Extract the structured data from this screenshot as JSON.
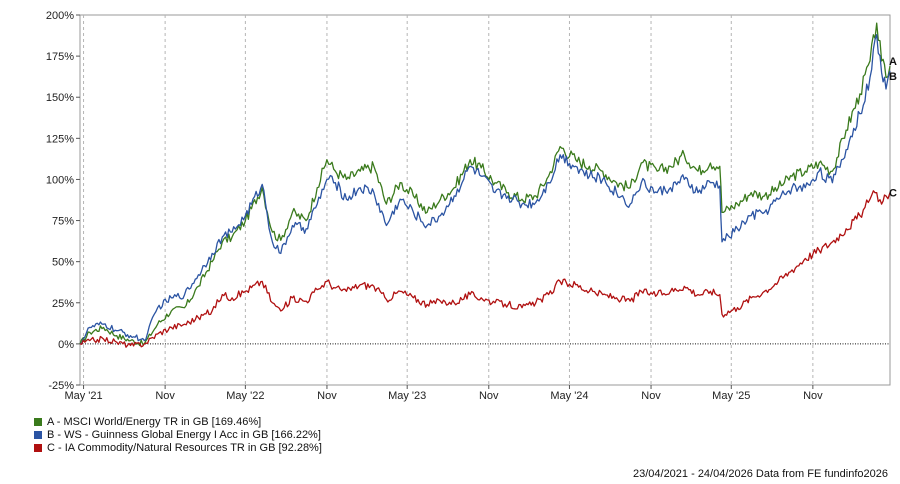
{
  "chart_data": {
    "type": "line",
    "ylim": [
      -0.25,
      2.0
    ],
    "y_ticks": [
      -0.25,
      0,
      0.25,
      0.5,
      0.75,
      1.0,
      1.25,
      1.5,
      1.75,
      2.0
    ],
    "y_tick_labels": [
      "-25%",
      "0%",
      "25%",
      "50%",
      "75%",
      "100%",
      "125%",
      "150%",
      "175%",
      "200%"
    ],
    "x_tick_labels": [
      "May '21",
      "Nov",
      "May '22",
      "Nov",
      "May '23",
      "Nov",
      "May '24",
      "Nov",
      "May '25",
      "Nov"
    ],
    "x_tick_dates": [
      "2021-05-01",
      "2021-11-01",
      "2022-05-01",
      "2022-11-01",
      "2023-05-01",
      "2023-11-01",
      "2024-05-01",
      "2024-11-01",
      "2025-05-01",
      "2025-11-01"
    ],
    "x_range": [
      "2021-04-23",
      "2026-04-24"
    ],
    "grid": "vertical",
    "zero_line": "dotted",
    "legend_position": "bottom-left",
    "series": [
      {
        "name": "A - MSCI World/Energy TR in GB [169.46%]",
        "end_label": "A",
        "color": "#3a7a1c",
        "points": [
          [
            "2021-04-23",
            0.0
          ],
          [
            "2021-05-15",
            0.07
          ],
          [
            "2021-06-15",
            0.1
          ],
          [
            "2021-07-15",
            0.05
          ],
          [
            "2021-08-15",
            0.02
          ],
          [
            "2021-09-15",
            0.0
          ],
          [
            "2021-10-15",
            0.12
          ],
          [
            "2021-11-15",
            0.2
          ],
          [
            "2021-12-15",
            0.22
          ],
          [
            "2022-01-15",
            0.35
          ],
          [
            "2022-02-15",
            0.5
          ],
          [
            "2022-03-10",
            0.62
          ],
          [
            "2022-04-01",
            0.65
          ],
          [
            "2022-05-01",
            0.75
          ],
          [
            "2022-06-08",
            0.95
          ],
          [
            "2022-07-01",
            0.68
          ],
          [
            "2022-07-20",
            0.63
          ],
          [
            "2022-08-15",
            0.8
          ],
          [
            "2022-09-15",
            0.75
          ],
          [
            "2022-10-10",
            0.95
          ],
          [
            "2022-11-01",
            1.12
          ],
          [
            "2022-11-20",
            1.05
          ],
          [
            "2022-12-15",
            1.0
          ],
          [
            "2023-01-15",
            1.05
          ],
          [
            "2023-02-15",
            1.08
          ],
          [
            "2023-03-15",
            0.85
          ],
          [
            "2023-04-15",
            0.98
          ],
          [
            "2023-05-15",
            0.9
          ],
          [
            "2023-06-15",
            0.8
          ],
          [
            "2023-07-15",
            0.88
          ],
          [
            "2023-08-15",
            0.95
          ],
          [
            "2023-09-20",
            1.12
          ],
          [
            "2023-10-15",
            1.07
          ],
          [
            "2023-11-15",
            0.98
          ],
          [
            "2023-12-15",
            0.92
          ],
          [
            "2024-01-15",
            0.88
          ],
          [
            "2024-02-15",
            0.9
          ],
          [
            "2024-03-15",
            1.02
          ],
          [
            "2024-04-10",
            1.2
          ],
          [
            "2024-05-15",
            1.12
          ],
          [
            "2024-06-15",
            1.08
          ],
          [
            "2024-07-15",
            1.05
          ],
          [
            "2024-08-15",
            0.98
          ],
          [
            "2024-09-15",
            0.95
          ],
          [
            "2024-10-10",
            1.1
          ],
          [
            "2024-11-15",
            1.05
          ],
          [
            "2024-12-15",
            1.08
          ],
          [
            "2025-01-15",
            1.15
          ],
          [
            "2025-02-15",
            1.05
          ],
          [
            "2025-03-15",
            1.1
          ],
          [
            "2025-04-05",
            1.08
          ],
          [
            "2025-04-10",
            0.8
          ],
          [
            "2025-05-15",
            0.85
          ],
          [
            "2025-06-15",
            0.92
          ],
          [
            "2025-07-15",
            0.9
          ],
          [
            "2025-08-15",
            0.95
          ],
          [
            "2025-09-15",
            1.02
          ],
          [
            "2025-10-15",
            1.05
          ],
          [
            "2025-11-15",
            1.1
          ],
          [
            "2025-12-15",
            1.05
          ],
          [
            "2026-01-15",
            1.3
          ],
          [
            "2026-02-15",
            1.52
          ],
          [
            "2026-03-10",
            1.72
          ],
          [
            "2026-03-25",
            1.95
          ],
          [
            "2026-04-05",
            1.72
          ],
          [
            "2026-04-15",
            1.62
          ],
          [
            "2026-04-24",
            1.69
          ]
        ]
      },
      {
        "name": "B - WS - Guinness Global Energy I Acc in GB [166.22%]",
        "end_label": "B",
        "color": "#2b54a3",
        "points": [
          [
            "2021-04-23",
            0.0
          ],
          [
            "2021-05-15",
            0.1
          ],
          [
            "2021-06-15",
            0.12
          ],
          [
            "2021-07-15",
            0.08
          ],
          [
            "2021-08-15",
            0.05
          ],
          [
            "2021-09-15",
            0.02
          ],
          [
            "2021-10-15",
            0.22
          ],
          [
            "2021-11-15",
            0.28
          ],
          [
            "2021-12-15",
            0.3
          ],
          [
            "2022-01-15",
            0.42
          ],
          [
            "2022-02-15",
            0.55
          ],
          [
            "2022-03-10",
            0.65
          ],
          [
            "2022-04-01",
            0.68
          ],
          [
            "2022-05-01",
            0.78
          ],
          [
            "2022-06-08",
            0.97
          ],
          [
            "2022-07-01",
            0.62
          ],
          [
            "2022-07-20",
            0.55
          ],
          [
            "2022-08-15",
            0.72
          ],
          [
            "2022-09-15",
            0.7
          ],
          [
            "2022-10-10",
            0.85
          ],
          [
            "2022-11-01",
            1.0
          ],
          [
            "2022-11-20",
            0.98
          ],
          [
            "2022-12-15",
            0.88
          ],
          [
            "2023-01-15",
            0.95
          ],
          [
            "2023-02-15",
            0.92
          ],
          [
            "2023-03-15",
            0.72
          ],
          [
            "2023-04-15",
            0.88
          ],
          [
            "2023-05-15",
            0.8
          ],
          [
            "2023-06-15",
            0.72
          ],
          [
            "2023-07-15",
            0.78
          ],
          [
            "2023-08-15",
            0.9
          ],
          [
            "2023-09-20",
            1.08
          ],
          [
            "2023-10-15",
            1.02
          ],
          [
            "2023-11-15",
            0.92
          ],
          [
            "2023-12-15",
            0.9
          ],
          [
            "2024-01-15",
            0.85
          ],
          [
            "2024-02-15",
            0.86
          ],
          [
            "2024-03-15",
            0.98
          ],
          [
            "2024-04-10",
            1.15
          ],
          [
            "2024-05-15",
            1.08
          ],
          [
            "2024-06-15",
            1.02
          ],
          [
            "2024-07-15",
            1.0
          ],
          [
            "2024-08-15",
            0.92
          ],
          [
            "2024-09-15",
            0.85
          ],
          [
            "2024-10-10",
            0.98
          ],
          [
            "2024-11-15",
            0.92
          ],
          [
            "2024-12-15",
            0.95
          ],
          [
            "2025-01-15",
            1.0
          ],
          [
            "2025-02-15",
            0.92
          ],
          [
            "2025-03-15",
            0.98
          ],
          [
            "2025-04-05",
            0.96
          ],
          [
            "2025-04-10",
            0.62
          ],
          [
            "2025-05-15",
            0.7
          ],
          [
            "2025-06-15",
            0.78
          ],
          [
            "2025-07-15",
            0.8
          ],
          [
            "2025-08-15",
            0.88
          ],
          [
            "2025-09-15",
            0.95
          ],
          [
            "2025-10-15",
            0.95
          ],
          [
            "2025-11-15",
            1.05
          ],
          [
            "2025-12-15",
            0.98
          ],
          [
            "2026-01-15",
            1.18
          ],
          [
            "2026-02-15",
            1.4
          ],
          [
            "2026-03-10",
            1.62
          ],
          [
            "2026-03-25",
            1.88
          ],
          [
            "2026-04-05",
            1.65
          ],
          [
            "2026-04-15",
            1.55
          ],
          [
            "2026-04-24",
            1.66
          ]
        ]
      },
      {
        "name": "C - IA Commodity/Natural Resources TR in GB [92.28%]",
        "end_label": "C",
        "color": "#b01010",
        "points": [
          [
            "2021-04-23",
            0.0
          ],
          [
            "2021-05-15",
            0.02
          ],
          [
            "2021-06-15",
            0.03
          ],
          [
            "2021-07-15",
            0.01
          ],
          [
            "2021-08-15",
            -0.01
          ],
          [
            "2021-09-15",
            0.0
          ],
          [
            "2021-10-15",
            0.06
          ],
          [
            "2021-11-15",
            0.1
          ],
          [
            "2021-12-15",
            0.12
          ],
          [
            "2022-01-15",
            0.16
          ],
          [
            "2022-02-15",
            0.2
          ],
          [
            "2022-03-10",
            0.3
          ],
          [
            "2022-04-01",
            0.28
          ],
          [
            "2022-05-01",
            0.32
          ],
          [
            "2022-06-08",
            0.38
          ],
          [
            "2022-07-01",
            0.25
          ],
          [
            "2022-07-20",
            0.2
          ],
          [
            "2022-08-15",
            0.28
          ],
          [
            "2022-09-15",
            0.26
          ],
          [
            "2022-10-10",
            0.33
          ],
          [
            "2022-11-01",
            0.38
          ],
          [
            "2022-11-20",
            0.34
          ],
          [
            "2022-12-15",
            0.32
          ],
          [
            "2023-01-15",
            0.36
          ],
          [
            "2023-02-15",
            0.35
          ],
          [
            "2023-03-15",
            0.27
          ],
          [
            "2023-04-15",
            0.32
          ],
          [
            "2023-05-15",
            0.28
          ],
          [
            "2023-06-15",
            0.24
          ],
          [
            "2023-07-15",
            0.26
          ],
          [
            "2023-08-15",
            0.25
          ],
          [
            "2023-09-20",
            0.3
          ],
          [
            "2023-10-15",
            0.28
          ],
          [
            "2023-11-15",
            0.25
          ],
          [
            "2023-12-15",
            0.24
          ],
          [
            "2024-01-15",
            0.22
          ],
          [
            "2024-02-15",
            0.25
          ],
          [
            "2024-03-15",
            0.3
          ],
          [
            "2024-04-10",
            0.38
          ],
          [
            "2024-05-15",
            0.36
          ],
          [
            "2024-06-15",
            0.32
          ],
          [
            "2024-07-15",
            0.3
          ],
          [
            "2024-08-15",
            0.28
          ],
          [
            "2024-09-15",
            0.26
          ],
          [
            "2024-10-10",
            0.32
          ],
          [
            "2024-11-15",
            0.3
          ],
          [
            "2024-12-15",
            0.32
          ],
          [
            "2025-01-15",
            0.35
          ],
          [
            "2025-02-15",
            0.3
          ],
          [
            "2025-03-15",
            0.32
          ],
          [
            "2025-04-05",
            0.3
          ],
          [
            "2025-04-10",
            0.18
          ],
          [
            "2025-05-15",
            0.22
          ],
          [
            "2025-06-15",
            0.28
          ],
          [
            "2025-07-15",
            0.32
          ],
          [
            "2025-08-15",
            0.38
          ],
          [
            "2025-09-15",
            0.45
          ],
          [
            "2025-10-15",
            0.52
          ],
          [
            "2025-11-15",
            0.57
          ],
          [
            "2025-12-15",
            0.62
          ],
          [
            "2026-01-15",
            0.7
          ],
          [
            "2026-02-15",
            0.78
          ],
          [
            "2026-03-10",
            0.88
          ],
          [
            "2026-03-25",
            0.92
          ],
          [
            "2026-04-05",
            0.85
          ],
          [
            "2026-04-15",
            0.9
          ],
          [
            "2026-04-24",
            0.92
          ]
        ]
      }
    ]
  },
  "legend": [
    {
      "label": "A - MSCI World/Energy TR in GB [169.46%]",
      "color": "#3a7a1c"
    },
    {
      "label": "B - WS - Guinness Global Energy I Acc in GB [166.22%]",
      "color": "#2b54a3"
    },
    {
      "label": "C - IA Commodity/Natural Resources TR in GB [92.28%]",
      "color": "#b01010"
    }
  ],
  "footer": "23/04/2021 - 24/04/2026 Data from FE fundinfo2026"
}
